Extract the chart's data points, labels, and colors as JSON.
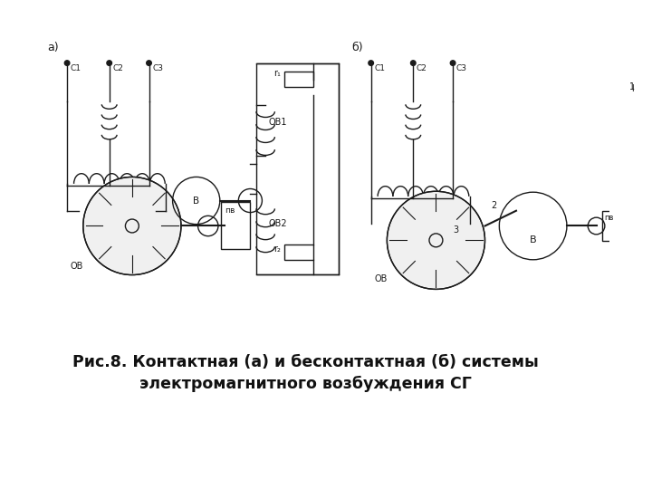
{
  "title_line1": "Рис.8. Контактная (а) и бесконтактная (б) системы",
  "title_line2": "электромагнитного возбуждения СГ",
  "title_fontsize": 12.5,
  "bg_color": "#ffffff",
  "fig_width": 7.2,
  "fig_height": 5.4,
  "dpi": 100,
  "label_a": "а)",
  "label_b": "б)",
  "line_color": "#1a1a1a",
  "text_color": "#111111"
}
